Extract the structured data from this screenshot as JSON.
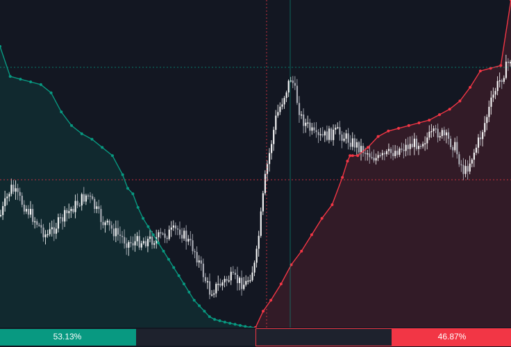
{
  "colors": {
    "background": "#131722",
    "bid": "#089981",
    "ask": "#f23645",
    "candle_up": "#ffffff",
    "candle_down": "#b2b5be"
  },
  "depth_bar": {
    "bid_percent_label": "53.13%",
    "ask_percent_label": "46.87%",
    "bid_fraction": 0.5313,
    "ask_fraction": 0.4687
  },
  "chart_data": [
    {
      "type": "area",
      "series": [
        {
          "x": [
            0,
            4,
            8,
            12,
            16,
            20,
            24,
            28,
            32,
            36,
            40,
            44,
            48,
            50,
            52,
            54,
            56,
            58,
            60,
            62,
            64,
            66,
            68,
            70,
            72,
            74,
            76,
            78,
            80,
            82,
            84,
            86,
            88,
            90,
            92,
            94,
            96,
            98,
            100
          ],
          "values": [
            103,
            92,
            91,
            90,
            89,
            86,
            79,
            74,
            71,
            69,
            66,
            63,
            56,
            51,
            49,
            44,
            40,
            37,
            34,
            31,
            28,
            25,
            22,
            19,
            16,
            13,
            10,
            8,
            6,
            4,
            3,
            2.5,
            2,
            1.6,
            1.2,
            0.8,
            0.4,
            0.1,
            0
          ]
        },
        {
          "x": [
            100,
            103,
            106,
            110,
            114,
            118,
            122,
            126,
            130,
            134,
            136,
            137,
            138,
            140,
            144,
            148,
            152,
            156,
            160,
            164,
            168,
            172,
            176,
            180,
            184,
            188,
            192,
            196,
            200
          ],
          "values": [
            0,
            6,
            10,
            16,
            23,
            28,
            34,
            40,
            45,
            55,
            61,
            63,
            63,
            63,
            66,
            70,
            72,
            73,
            74,
            75,
            76,
            78,
            80,
            83,
            88,
            94,
            95,
            96,
            120
          ]
        }
      ]
    },
    {
      "type": "candlestick"
    }
  ]
}
